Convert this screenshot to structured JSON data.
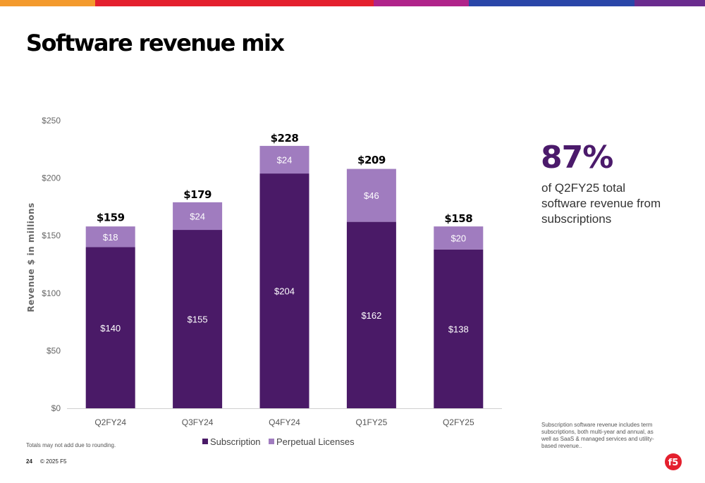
{
  "topbar_colors": [
    "#f39a2d",
    "#e4202e",
    "#b0238a",
    "#2a46a8",
    "#6a2b8e"
  ],
  "title": "Software revenue mix",
  "chart_data": {
    "type": "bar",
    "stacked": true,
    "categories": [
      "Q2FY24",
      "Q3FY24",
      "Q4FY24",
      "Q1FY25",
      "Q2FY25"
    ],
    "series": [
      {
        "name": "Subscription",
        "values": [
          140,
          155,
          204,
          162,
          138
        ],
        "labels": [
          "$140",
          "$155",
          "$204",
          "$162",
          "$138"
        ],
        "color": "#4a1a67"
      },
      {
        "name": "Perpetual Licenses",
        "values": [
          18,
          24,
          24,
          46,
          20
        ],
        "labels": [
          "$18",
          "$24",
          "$24",
          "$46",
          "$20"
        ],
        "color": "#a07cbf"
      }
    ],
    "totals": [
      159,
      179,
      228,
      209,
      158
    ],
    "total_labels": [
      "$159",
      "$179",
      "$228",
      "$209",
      "$158"
    ],
    "ylabel": "Revenue $ in millions",
    "ylim": [
      0,
      250
    ],
    "yticks": [
      0,
      50,
      100,
      150,
      200,
      250
    ],
    "ytick_labels": [
      "$0",
      "$50",
      "$100",
      "$150",
      "$200",
      "$250"
    ],
    "grid": false,
    "legend_position": "bottom-center"
  },
  "stat": {
    "value": "87%",
    "caption": "of Q2FY25 total software revenue from subscriptions"
  },
  "footnote_right": "Subscription software revenue includes term subscriptions, both multi-year and annual, as well as SaaS & managed services and utility-based revenue..",
  "footnote_left": "Totals may not add due to rounding.",
  "footer": {
    "page_number": "24",
    "copyright": "© 2025 F5"
  },
  "logo": {
    "text": "f5",
    "color": "#e4202e"
  }
}
